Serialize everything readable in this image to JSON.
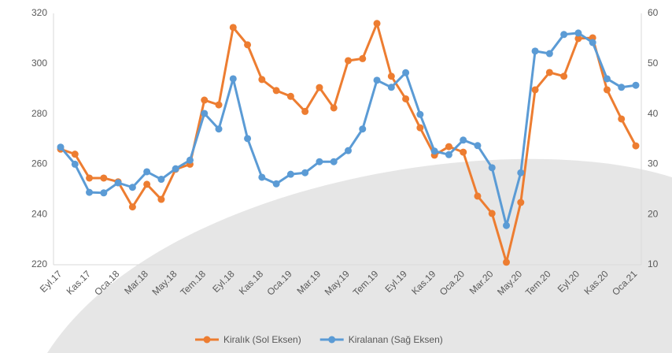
{
  "chart_data": {
    "type": "line",
    "categories": [
      "Eyl.17",
      null,
      "Kas.17",
      null,
      "Oca.18",
      null,
      "Mar.18",
      null,
      "May.18",
      null,
      "Tem.18",
      null,
      "Eyl.18",
      null,
      "Kas.18",
      null,
      "Oca.19",
      null,
      "Mar.19",
      null,
      "May.19",
      null,
      "Tem.19",
      null,
      "Eyl.19",
      null,
      "Kas.19",
      null,
      "Oca.20",
      null,
      "Mar.20",
      null,
      "May.20",
      null,
      "Tem.20",
      null,
      "Eyl.20",
      null,
      "Kas.20",
      null,
      "Oca.21"
    ],
    "series": [
      {
        "name": "Kiralık (Sol Eksen)",
        "color": "#ed7d31",
        "axis": "y",
        "values": [
          266,
          264,
          254.5,
          254.5,
          253,
          243,
          252,
          246,
          258,
          260,
          285.5,
          283.6,
          314.4,
          307.5,
          293.7,
          289.3,
          287,
          281,
          290.5,
          282.4,
          301.2,
          302,
          316,
          295,
          286,
          274.5,
          263.6,
          267,
          264.8,
          247.3,
          240.4,
          221,
          244.8,
          289.6,
          296.5,
          295,
          310,
          310.3,
          289.6,
          278,
          267.3
        ]
      },
      {
        "name": "Kiralanan (Sağ Eksen)",
        "color": "#5b9bd5",
        "axis": "y2",
        "values": [
          33.4,
          30,
          24.4,
          24.3,
          26.3,
          25.4,
          28.5,
          27,
          29.1,
          30.8,
          40.1,
          37,
          47,
          35.1,
          27.4,
          26.1,
          28,
          28.3,
          30.5,
          30.5,
          32.7,
          37,
          46.7,
          45.3,
          48.2,
          39.9,
          32.6,
          31.9,
          34.8,
          33.7,
          29.3,
          17.8,
          28.3,
          52.5,
          52,
          55.8,
          56.1,
          54.2,
          47,
          45.3,
          45.7
        ]
      }
    ],
    "ylim": [
      220,
      320
    ],
    "yticks": [
      220,
      240,
      260,
      280,
      300,
      320
    ],
    "y2lim": [
      10,
      60
    ],
    "y2ticks": [
      10,
      20,
      30,
      40,
      50,
      60
    ],
    "legend": "bottom"
  }
}
